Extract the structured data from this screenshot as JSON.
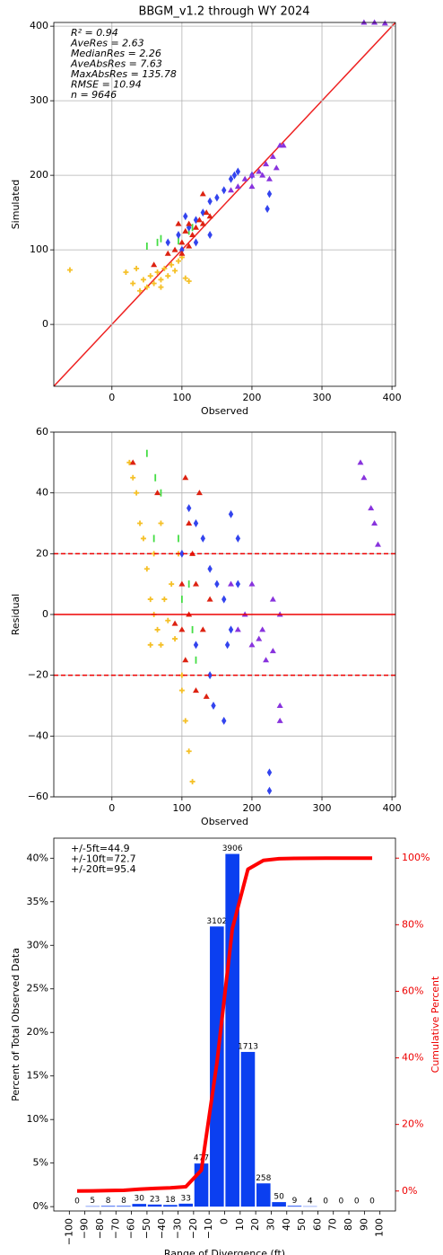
{
  "chart_data": [
    {
      "type": "scatter",
      "title": "BBGM_v1.2 through WY 2024",
      "xlabel": "Observed",
      "ylabel": "Simulated",
      "xlim": [
        -83,
        405
      ],
      "ylim": [
        -83,
        405
      ],
      "xticks": [
        0,
        100,
        200,
        300,
        400
      ],
      "yticks": [
        0,
        100,
        200,
        300,
        400
      ],
      "grid": true,
      "diagonal": true,
      "diagonal_color": "#ee2222",
      "annotations": [
        "R² = 0.94",
        "AveRes = 2.63",
        "MedianRes = 2.26",
        "AveAbsRes = 7.63",
        "MaxAbsRes = 135.78",
        "RMSE = 10.94",
        "n = 9646"
      ],
      "series": [
        {
          "color": "#f5c027",
          "marker": "plus",
          "x": [
            -60,
            20,
            30,
            40,
            45,
            50,
            55,
            60,
            65,
            70,
            75,
            80,
            85,
            90,
            95,
            100,
            105,
            110,
            35,
            70
          ],
          "values": [
            73,
            70,
            55,
            45,
            60,
            50,
            65,
            55,
            70,
            60,
            75,
            65,
            80,
            72,
            85,
            90,
            62,
            58,
            75,
            50
          ]
        },
        {
          "color": "#44dd44",
          "marker": "vline",
          "x": [
            50,
            65,
            70,
            95,
            110,
            115
          ],
          "values": [
            105,
            110,
            115,
            112,
            125,
            130
          ]
        },
        {
          "color": "#3344ee",
          "marker": "diamond",
          "x": [
            80,
            95,
            100,
            110,
            120,
            130,
            140,
            150,
            160,
            170,
            175,
            180,
            200,
            225,
            222,
            140,
            120,
            105
          ],
          "values": [
            110,
            120,
            100,
            130,
            140,
            150,
            165,
            170,
            180,
            195,
            200,
            205,
            200,
            175,
            155,
            120,
            110,
            145
          ]
        },
        {
          "color": "#dd2211",
          "marker": "triangle",
          "x": [
            60,
            80,
            90,
            100,
            105,
            110,
            115,
            120,
            125,
            130,
            135,
            140,
            100,
            110,
            130,
            95
          ],
          "values": [
            80,
            95,
            100,
            110,
            125,
            135,
            120,
            130,
            140,
            135,
            150,
            145,
            95,
            105,
            175,
            135
          ]
        },
        {
          "color": "#8833dd",
          "marker": "triangle",
          "x": [
            170,
            180,
            190,
            200,
            210,
            220,
            230,
            240,
            245,
            235,
            225,
            360,
            375,
            390,
            200,
            215
          ],
          "values": [
            180,
            185,
            195,
            200,
            205,
            215,
            225,
            240,
            240,
            210,
            195,
            405,
            405,
            404,
            185,
            200
          ]
        }
      ]
    },
    {
      "type": "scatter",
      "xlabel": "Observed",
      "ylabel": "Residual",
      "xlim": [
        -83,
        405
      ],
      "ylim": [
        -60,
        60
      ],
      "xticks": [
        0,
        100,
        200,
        300,
        400
      ],
      "yticks": [
        {
          "value": -60,
          "label": "−60"
        },
        {
          "value": -40,
          "label": "−40"
        },
        {
          "value": -20,
          "label": "−20"
        },
        0,
        20,
        40,
        60
      ],
      "grid": true,
      "hlines": [
        {
          "value": 0,
          "style": "solid",
          "color": "#ee0000"
        },
        {
          "value": 20,
          "style": "dashed",
          "color": "#ee0000"
        },
        {
          "value": -20,
          "style": "dashed",
          "color": "#ee0000"
        }
      ],
      "series": [
        {
          "color": "#f5c027",
          "marker": "plus",
          "x": [
            25,
            30,
            35,
            40,
            45,
            50,
            55,
            60,
            65,
            70,
            75,
            80,
            85,
            90,
            100,
            105,
            110,
            115,
            95,
            60,
            70,
            100,
            55
          ],
          "values": [
            50,
            45,
            40,
            30,
            25,
            15,
            5,
            0,
            -5,
            -10,
            5,
            -2,
            10,
            -8,
            -20,
            -35,
            -45,
            -55,
            20,
            20,
            30,
            -25,
            -10
          ]
        },
        {
          "color": "#44dd44",
          "marker": "vline",
          "x": [
            50,
            62,
            70,
            95,
            100,
            110,
            115,
            120,
            60
          ],
          "values": [
            53,
            45,
            40,
            25,
            5,
            10,
            -5,
            -15,
            25
          ]
        },
        {
          "color": "#3344ee",
          "marker": "diamond",
          "x": [
            100,
            110,
            120,
            130,
            140,
            150,
            160,
            170,
            180,
            165,
            140,
            145,
            160,
            225,
            225,
            170,
            180,
            120
          ],
          "values": [
            20,
            35,
            30,
            25,
            15,
            10,
            5,
            -5,
            10,
            -10,
            -20,
            -30,
            -35,
            -52,
            -58,
            33,
            25,
            -10
          ]
        },
        {
          "color": "#dd2211",
          "marker": "triangle",
          "x": [
            30,
            65,
            105,
            110,
            115,
            120,
            100,
            105,
            120,
            135,
            130,
            140,
            100,
            125,
            110,
            90
          ],
          "values": [
            50,
            40,
            45,
            30,
            20,
            10,
            -5,
            -15,
            -25,
            -27,
            -5,
            5,
            10,
            40,
            0,
            -3
          ]
        },
        {
          "color": "#8833dd",
          "marker": "triangle",
          "x": [
            170,
            180,
            190,
            200,
            210,
            220,
            230,
            240,
            230,
            240,
            240,
            355,
            360,
            370,
            375,
            380,
            200,
            215
          ],
          "values": [
            10,
            -5,
            0,
            -10,
            -8,
            -15,
            -12,
            0,
            5,
            -30,
            -35,
            50,
            45,
            35,
            30,
            23,
            10,
            -5
          ]
        }
      ]
    },
    {
      "type": "histogram",
      "xlabel": "Range of Divergence (ft)",
      "ylabel": "Percent of Total Observed Data",
      "y2label": "Cumulative Percent",
      "color": "#0b3ff0",
      "y2color": "#ee0000",
      "bins": [
        -100,
        -90,
        -80,
        -70,
        -60,
        -50,
        -40,
        -30,
        -20,
        -10,
        0,
        10,
        20,
        30,
        40,
        50,
        60,
        70,
        80,
        90,
        100
      ],
      "values": [
        0,
        0.05,
        0.08,
        0.08,
        0.31,
        0.24,
        0.19,
        0.34,
        4.95,
        32.16,
        40.49,
        17.76,
        2.67,
        0.52,
        0.09,
        0.04,
        0,
        0,
        0,
        0
      ],
      "bar_labels": [
        0,
        5,
        8,
        8,
        30,
        23,
        18,
        33,
        477,
        3102,
        3906,
        1713,
        258,
        50,
        9,
        4,
        0,
        0,
        0,
        0
      ],
      "xlim": [
        -110,
        110
      ],
      "xticks": [
        {
          "value": -100,
          "label": "−100"
        },
        {
          "value": -90,
          "label": "−90"
        },
        {
          "value": -80,
          "label": "−80"
        },
        {
          "value": -70,
          "label": "−70"
        },
        {
          "value": -60,
          "label": "−60"
        },
        {
          "value": -50,
          "label": "−50"
        },
        {
          "value": -40,
          "label": "−40"
        },
        {
          "value": -30,
          "label": "−30"
        },
        {
          "value": -20,
          "label": "−20"
        },
        {
          "value": -10,
          "label": "−10"
        },
        0,
        10,
        20,
        30,
        40,
        50,
        60,
        70,
        80,
        90,
        100
      ],
      "ylim": [
        -0.5,
        42.3
      ],
      "yticks": [
        {
          "value": 0,
          "label": "0%"
        },
        {
          "value": 5,
          "label": "5%"
        },
        {
          "value": 10,
          "label": "10%"
        },
        {
          "value": 15,
          "label": "15%"
        },
        {
          "value": 20,
          "label": "20%"
        },
        {
          "value": 25,
          "label": "25%"
        },
        {
          "value": 30,
          "label": "30%"
        },
        {
          "value": 35,
          "label": "35%"
        },
        {
          "value": 40,
          "label": "40%"
        }
      ],
      "y2lim": [
        -6,
        106
      ],
      "y2ticks": [
        {
          "value": 0,
          "label": "0%"
        },
        {
          "value": 20,
          "label": "20%"
        },
        {
          "value": 40,
          "label": "40%"
        },
        {
          "value": 60,
          "label": "60%"
        },
        {
          "value": 80,
          "label": "80%"
        },
        {
          "value": 100,
          "label": "100%"
        }
      ],
      "grid": false,
      "annotations": [
        "+/-5ft=44.9",
        "+/-10ft=72.7",
        "+/-20ft=95.4"
      ],
      "series": [
        {
          "axis": "y2",
          "color": "#ff0000",
          "x": [
            -95,
            -85,
            -75,
            -65,
            -55,
            -45,
            -35,
            -25,
            -15,
            -5,
            5,
            15,
            25,
            35,
            45,
            55,
            65,
            75,
            85,
            95
          ],
          "values": [
            0,
            0.05,
            0.13,
            0.22,
            0.53,
            0.77,
            0.95,
            1.29,
            6.24,
            38.4,
            78.89,
            96.65,
            99.32,
            99.84,
            99.93,
            99.97,
            100,
            100,
            100,
            100
          ]
        }
      ]
    }
  ]
}
